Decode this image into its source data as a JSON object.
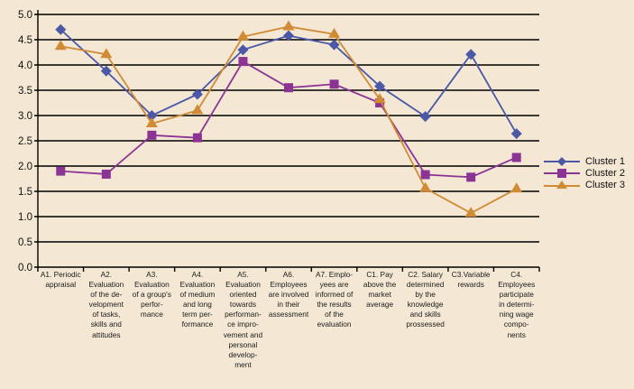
{
  "chart_data": {
    "type": "line",
    "title": "",
    "xlabel": "",
    "ylabel": "",
    "ylim": [
      0,
      5
    ],
    "yticks": [
      "0.0",
      "0.5",
      "1.0",
      "1.5",
      "2.0",
      "2.5",
      "3.0",
      "3.5",
      "4.0",
      "4.5",
      "5.0"
    ],
    "grid": true,
    "legend_position": "right",
    "categories": [
      "A1. Periodic\nappraisal",
      "A2.\nEvaluation\nof the de-\nvelopment\nof tasks,\nskills and\nattitudes",
      "A3.\nEvaluation\nof a group's\nperfor-\nmance",
      "A4.\nEvaluation\nof medium\nand long\nterm per-\nformance",
      "A5.\nEvaluation\noriented\ntowards\nperforman-\nce impro-\nvement and\npersonal\ndevelop-\nment",
      "A6.\nEmployees\nare involved\nin their\nassessment",
      "A7. Emplo-\nyees are\ninformed of\nthe results\nof the\nevaluation",
      "C1. Pay\nabove the\nmarket\naverage",
      "C2. Salary\ndetermined\nby the\nknowledge\nand skills\nprossessed",
      "C3.Variable\nrewards",
      "C4.\nEmployees\nparticipate\nin determi-\nning wage\ncompo-\nnents"
    ],
    "series": [
      {
        "name": "Cluster 1",
        "color": "#4A58A5",
        "marker": "diamond",
        "values": [
          4.7,
          3.88,
          3.0,
          3.42,
          4.3,
          4.58,
          4.4,
          3.58,
          2.98,
          4.21,
          2.64
        ]
      },
      {
        "name": "Cluster 2",
        "color": "#8C3494",
        "marker": "square",
        "values": [
          1.9,
          1.84,
          2.61,
          2.56,
          4.07,
          3.55,
          3.62,
          3.25,
          1.83,
          1.78,
          2.17
        ]
      },
      {
        "name": "Cluster 3",
        "color": "#D08B34",
        "marker": "triangle",
        "values": [
          4.37,
          4.21,
          2.84,
          3.1,
          4.56,
          4.76,
          4.61,
          3.32,
          1.56,
          1.07,
          1.55
        ]
      }
    ]
  },
  "legend": {
    "items": [
      {
        "label": "Cluster 1"
      },
      {
        "label": "Cluster 2"
      },
      {
        "label": "Cluster 3"
      }
    ]
  }
}
